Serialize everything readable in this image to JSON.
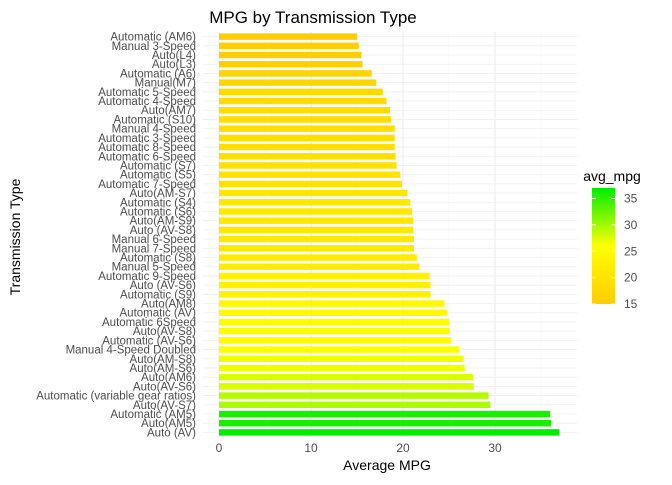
{
  "chart_data": {
    "type": "bar",
    "orientation": "horizontal",
    "title": "MPG by Transmission Type",
    "xlabel": "Average MPG",
    "ylabel": "Transmission Type",
    "xlim": [
      0,
      37
    ],
    "xticks": [
      0,
      10,
      20,
      30
    ],
    "grid": true,
    "categories": [
      "Automatic (AM6)",
      "Manual 3-Speed",
      "Auto(L4)",
      "Auto(L3)",
      "Automatic (A6)",
      "Manual(M7)",
      "Automatic 5-Speed",
      "Automatic 4-Speed",
      "Auto(AM7)",
      "Automatic (S10)",
      "Manual 4-Speed",
      "Automatic 3-Speed",
      "Automatic 8-Speed",
      "Automatic 6-Speed",
      "Automatic (S7)",
      "Automatic (S5)",
      "Automatic 7-Speed",
      "Auto(AM-S7)",
      "Automatic (S4)",
      "Automatic (S6)",
      "Auto(AM-S9)",
      "Auto (AV-S8)",
      "Manual 6-Speed",
      "Manual 7-Speed",
      "Automatic (S8)",
      "Manual 5-Speed",
      "Automatic 9-Speed",
      "Auto (AV-S6)",
      "Automatic (S9)",
      "Auto(AM8)",
      "Automatic (AV)",
      "Automatic 6Speed",
      "Auto(AV-S8)",
      "Automatic (AV-S6)",
      "Manual 4-Speed Doubled",
      "Auto(AM-S8)",
      "Auto(AM-S6)",
      "Auto(AM6)",
      "Auto(AV-S6)",
      "Automatic (variable gear ratios)",
      "Auto(AV-S7)",
      "Automatic (AM5)",
      "Auto(AM5)",
      "Auto (AV)"
    ],
    "values": [
      15.0,
      15.2,
      15.5,
      15.6,
      16.6,
      17.1,
      17.8,
      18.2,
      18.6,
      18.7,
      19.1,
      19.1,
      19.1,
      19.2,
      19.3,
      19.7,
      19.9,
      20.5,
      20.8,
      21.0,
      21.1,
      21.1,
      21.2,
      21.2,
      21.5,
      21.8,
      22.9,
      23.0,
      23.0,
      24.5,
      24.8,
      25.0,
      25.1,
      25.2,
      26.1,
      26.6,
      26.7,
      27.6,
      27.7,
      29.3,
      29.5,
      36.0,
      36.1,
      37.0
    ],
    "legend": {
      "title": "avg_mpg",
      "position": "right",
      "ticks": [
        15,
        20,
        25,
        30,
        35
      ],
      "range": [
        15,
        37
      ],
      "color_low": "#ffcc00",
      "color_mid": "#ffff00",
      "color_high": "#00ee00"
    }
  }
}
